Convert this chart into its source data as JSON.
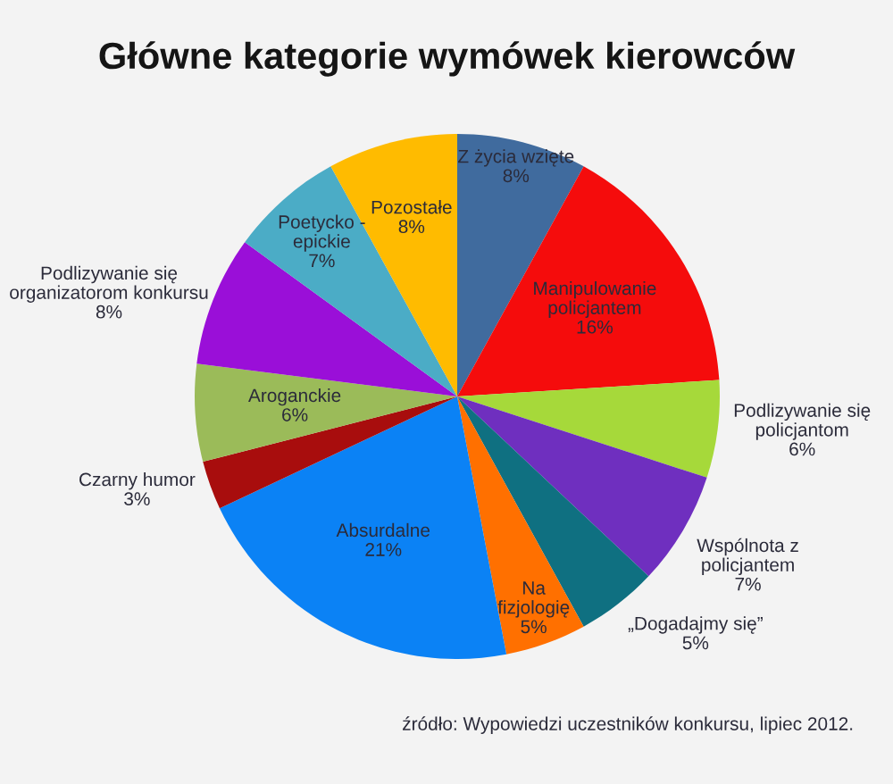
{
  "chart_data": {
    "type": "pie",
    "title": "Główne kategorie wymówek kierowców",
    "categories": [
      "Z życia wzięte",
      "Manipulowanie\npolicjantem",
      "Podlizywanie się\npolicjantom",
      "Wspólnota z\npolicjantem",
      "„Dogadajmy się”",
      "Na\nfizjologię",
      "Absurdalne",
      "Czarny humor",
      "Aroganckie",
      "Podlizywanie się\norganizatorom konkursu",
      "Poetycko -\nepickie",
      "Pozostałe"
    ],
    "values": [
      8,
      16,
      6,
      7,
      5,
      5,
      21,
      3,
      6,
      8,
      7,
      8
    ],
    "value_labels": [
      "8%",
      "16%",
      "6%",
      "7%",
      "5%",
      "5%",
      "21%",
      "3%",
      "6%",
      "8%",
      "7%",
      "8%"
    ],
    "colors": [
      "#406b9e",
      "#f50c0c",
      "#a6d93a",
      "#6f2fbf",
      "#0f7081",
      "#ff7000",
      "#0b82f5",
      "#a80d0d",
      "#9bbb59",
      "#9a0fd8",
      "#4bacc6",
      "#ffbb00"
    ],
    "annotations": [
      "źródło: Wypowiedzi uczestników konkursu, lipiec 2012."
    ]
  }
}
